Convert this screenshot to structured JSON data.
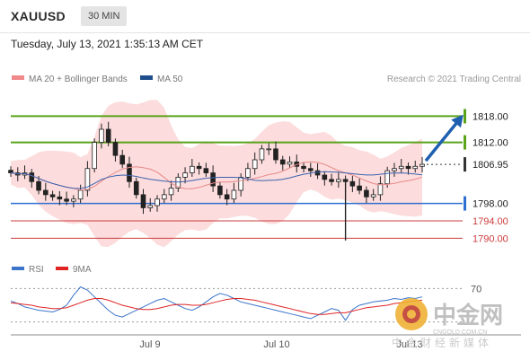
{
  "header": {
    "symbol": "XAUUSD",
    "timeframe": "30 MIN",
    "timestamp": "Tuesday, July 13, 2021 1:35:13 AM CET"
  },
  "legend": {
    "items": [
      {
        "label": "MA 20 + Bollinger Bands",
        "color": "#f08a8a"
      },
      {
        "label": "MA 50",
        "color": "#1f4e8c"
      }
    ],
    "credit": "Research © 2021 Trading Central"
  },
  "rsi_legend": {
    "items": [
      {
        "label": "RSI",
        "color": "#3b74c9"
      },
      {
        "label": "9MA",
        "color": "#e02424"
      }
    ]
  },
  "watermark": {
    "brand_cn": "中金网",
    "url": "CNGOLD.COM.CN",
    "tagline": "中金财经新媒体"
  },
  "chart_data": [
    {
      "type": "candlestick",
      "title": "",
      "x_ticks": [
        "Jul 9",
        "Jul 10",
        "Jul 13"
      ],
      "ylim": [
        1787,
        1822
      ],
      "last_price": 1806.95,
      "levels": [
        {
          "value": 1818.0,
          "label": "1818.00",
          "kind": "resistance",
          "color": "#5aa31a"
        },
        {
          "value": 1812.0,
          "label": "1812.00",
          "kind": "resistance",
          "color": "#5aa31a"
        },
        {
          "value": 1806.95,
          "label": "1806.95",
          "kind": "last",
          "color": "#333333"
        },
        {
          "value": 1798.0,
          "label": "1798.00",
          "kind": "pivot",
          "color": "#2f6fd1"
        },
        {
          "value": 1794.0,
          "label": "1794.00",
          "kind": "support",
          "color": "#cc3b3b"
        },
        {
          "value": 1790.0,
          "label": "1790.00",
          "kind": "support",
          "color": "#cc3b3b"
        }
      ],
      "forecast_target": 1818.0,
      "close_series": [
        1805,
        1804.5,
        1805,
        1803,
        1801,
        1800,
        1799.5,
        1799,
        1798.5,
        1799,
        1801,
        1806,
        1812,
        1815,
        1812,
        1809,
        1807,
        1803,
        1800,
        1797,
        1797.5,
        1799,
        1800,
        1801.5,
        1804,
        1805,
        1806.5,
        1806,
        1805,
        1802,
        1800,
        1799,
        1801,
        1804,
        1806,
        1808,
        1810.5,
        1810.5,
        1808,
        1807,
        1807.5,
        1806.5,
        1806,
        1805.5,
        1804.5,
        1803.5,
        1803,
        1803.5,
        1803,
        1802,
        1801,
        1799.5,
        1800,
        1802.5,
        1805.5,
        1806,
        1806.5,
        1806,
        1806.5,
        1806.95
      ]
    },
    {
      "type": "line",
      "title": "RSI",
      "ylim": [
        20,
        80
      ],
      "y_ticks": [
        70
      ],
      "series": [
        {
          "name": "RSI",
          "values": [
            55,
            52,
            48,
            46,
            44,
            43,
            42,
            45,
            50,
            62,
            72,
            68,
            60,
            52,
            44,
            38,
            36,
            40,
            44,
            48,
            52,
            56,
            58,
            54,
            50,
            46,
            44,
            48,
            54,
            60,
            64,
            62,
            58,
            54,
            52,
            50,
            48,
            46,
            44,
            42,
            40,
            38,
            36,
            34,
            38,
            42,
            46,
            44,
            32,
            45,
            50,
            52,
            54,
            55,
            56,
            58,
            57,
            59,
            58,
            60
          ]
        },
        {
          "name": "9MA",
          "values": [
            53,
            52,
            51,
            50,
            48,
            47,
            46,
            46,
            47,
            50,
            53,
            56,
            58,
            58,
            56,
            53,
            50,
            48,
            46,
            45,
            45,
            46,
            48,
            50,
            51,
            51,
            50,
            50,
            51,
            53,
            55,
            57,
            58,
            58,
            57,
            56,
            54,
            52,
            50,
            48,
            46,
            44,
            42,
            40,
            39,
            39,
            40,
            41,
            41,
            43,
            45,
            47,
            48,
            49,
            50,
            52,
            53,
            54,
            55,
            56
          ]
        }
      ]
    }
  ]
}
